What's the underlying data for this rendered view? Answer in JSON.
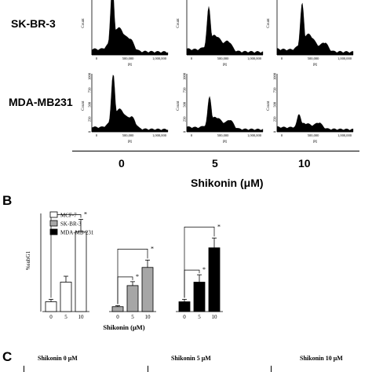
{
  "panel_a": {
    "rows": [
      "SK-BR-3",
      "MDA-MB231"
    ],
    "columns": [
      "0",
      "5",
      "10"
    ],
    "xlabel_short": "PI",
    "ylabel_short": "Count",
    "x_tick_labels": [
      "0",
      "500,000",
      "1,000,000"
    ],
    "y_tick_labels": [
      "0",
      "250",
      "500",
      "750",
      "1000"
    ],
    "treatment_label": "Shikonin (μM)"
  },
  "panel_b": {
    "letter": "B",
    "ylabel": "%subG1",
    "xlabel": "Shikonin (μM)",
    "significance_mark": "*"
  },
  "panel_c": {
    "letter": "C",
    "titles": [
      "Shikonin 0 μM",
      "Shikonin 5 μM",
      "Shikonin 10 μM"
    ]
  },
  "chart_data": {
    "type": "bar",
    "title": "",
    "xlabel": "Shikonin (μM)",
    "ylabel": "%subG1",
    "categories": [
      "0",
      "5",
      "10"
    ],
    "legend_position": "top-left",
    "series": [
      {
        "name": "MCF-7",
        "color": "#ffffff",
        "values": [
          2,
          6,
          16.3
        ],
        "errors": [
          0.5,
          1.2,
          2.5
        ]
      },
      {
        "name": "SK-BR-3",
        "color": "#a6a6a6",
        "values": [
          1,
          5.3,
          9
        ],
        "errors": [
          0.2,
          0.8,
          1.5
        ]
      },
      {
        "name": "MDA-MB-231",
        "color": "#000000",
        "values": [
          2,
          6,
          13
        ],
        "errors": [
          0.5,
          1.5,
          2
        ]
      }
    ],
    "significance": [
      {
        "series": 0,
        "pairs": [
          [
            0,
            2
          ]
        ]
      },
      {
        "series": 1,
        "pairs": [
          [
            0,
            1
          ],
          [
            0,
            2
          ]
        ]
      },
      {
        "series": 2,
        "pairs": [
          [
            0,
            1
          ],
          [
            0,
            2
          ]
        ]
      }
    ]
  }
}
